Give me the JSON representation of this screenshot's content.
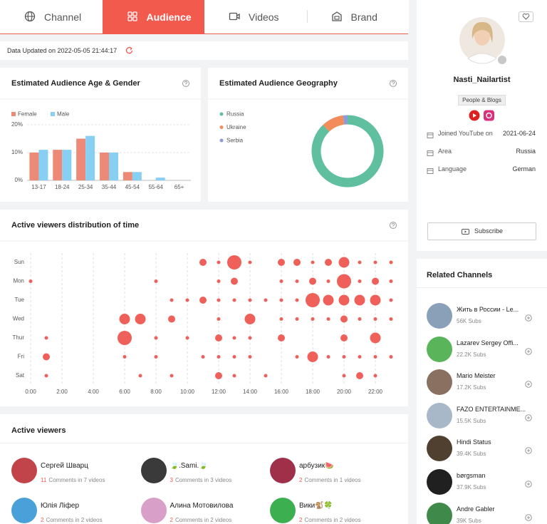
{
  "tabs": {
    "items": [
      "Channel",
      "Audience",
      "Videos",
      "Brand"
    ],
    "active": 1
  },
  "update": {
    "text": "Data Updated on 2022-05-05 21:44:17"
  },
  "chart_data": [
    {
      "type": "bar",
      "title": "Estimated Audience Age & Gender",
      "categories": [
        "13-17",
        "18-24",
        "25-34",
        "35-44",
        "45-54",
        "55-64",
        "65+"
      ],
      "series": [
        {
          "name": "Female",
          "color": "#ec8a77",
          "values": [
            10,
            11,
            15,
            10,
            3,
            0,
            0
          ]
        },
        {
          "name": "Male",
          "color": "#88d0f3",
          "values": [
            11,
            11,
            16,
            10,
            3,
            1,
            0
          ]
        }
      ],
      "ylim": [
        0,
        20
      ],
      "yticks": [
        {
          "value": 0,
          "label": "0%"
        },
        {
          "value": 10,
          "label": "10%"
        },
        {
          "value": 20,
          "label": "20%"
        }
      ],
      "grid": true
    },
    {
      "type": "donut",
      "title": "Estimated Audience Geography",
      "categories": [
        "Russia",
        "Ukraine",
        "Serbia"
      ],
      "values": [
        88,
        10,
        2
      ],
      "colors": [
        "#5fbf9f",
        "#f28c5b",
        "#8e9bd6"
      ]
    },
    {
      "type": "bubble",
      "title": "Active viewers distribution of time",
      "color": "#f0605a",
      "x": [
        0,
        1,
        2,
        3,
        4,
        5,
        6,
        7,
        8,
        9,
        10,
        11,
        12,
        13,
        14,
        15,
        16,
        17,
        18,
        19,
        20,
        21,
        22,
        23
      ],
      "xlim": [
        0,
        23
      ],
      "xticks": [
        {
          "value": 0,
          "label": "0:00"
        },
        {
          "value": 2,
          "label": "2:00"
        },
        {
          "value": 4,
          "label": "4:00"
        },
        {
          "value": 6,
          "label": "6:00"
        },
        {
          "value": 8,
          "label": "8:00"
        },
        {
          "value": 10,
          "label": "10:00"
        },
        {
          "value": 12,
          "label": "12:00"
        },
        {
          "value": 14,
          "label": "14:00"
        },
        {
          "value": 16,
          "label": "16:00"
        },
        {
          "value": 18,
          "label": "18:00"
        },
        {
          "value": 20,
          "label": "20:00"
        },
        {
          "value": 22,
          "label": "22:00"
        }
      ],
      "grid": true,
      "series": [
        {
          "name": "Sun",
          "values": [
            null,
            null,
            null,
            null,
            null,
            null,
            null,
            null,
            null,
            null,
            null,
            2,
            1,
            4,
            1,
            null,
            2,
            2,
            1,
            2,
            3,
            1,
            1,
            1
          ]
        },
        {
          "name": "Mon",
          "values": [
            1,
            null,
            null,
            null,
            null,
            null,
            null,
            null,
            1,
            null,
            null,
            null,
            1,
            2,
            null,
            null,
            1,
            1,
            2,
            1,
            4,
            1,
            2,
            1
          ]
        },
        {
          "name": "Tue",
          "values": [
            null,
            null,
            null,
            null,
            null,
            null,
            null,
            null,
            null,
            1,
            1,
            2,
            1,
            1,
            1,
            1,
            1,
            1,
            4,
            3,
            3,
            3,
            3,
            1
          ]
        },
        {
          "name": "Wed",
          "values": [
            null,
            null,
            null,
            null,
            null,
            null,
            3,
            3,
            null,
            2,
            null,
            null,
            1,
            null,
            3,
            null,
            1,
            1,
            1,
            1,
            2,
            1,
            1,
            1
          ]
        },
        {
          "name": "Thur",
          "values": [
            null,
            1,
            null,
            null,
            null,
            null,
            4,
            null,
            1,
            null,
            1,
            null,
            2,
            1,
            1,
            null,
            2,
            null,
            null,
            null,
            2,
            null,
            3,
            null
          ]
        },
        {
          "name": "Fri",
          "values": [
            null,
            2,
            null,
            null,
            null,
            null,
            1,
            null,
            1,
            null,
            null,
            1,
            1,
            1,
            1,
            null,
            null,
            1,
            3,
            1,
            1,
            1,
            1,
            1
          ]
        },
        {
          "name": "Sat",
          "values": [
            null,
            1,
            null,
            null,
            null,
            null,
            null,
            1,
            null,
            1,
            null,
            null,
            2,
            1,
            null,
            1,
            null,
            null,
            null,
            null,
            1,
            2,
            1,
            null
          ]
        }
      ]
    }
  ],
  "active_viewers": {
    "title": "Active viewers",
    "items": [
      {
        "name": "Сергей Шварц",
        "count": 11,
        "text": "Comments in 7 videos",
        "color": "#c0444a"
      },
      {
        "name": "🍃.Sami.🍃",
        "count": 3,
        "text": "Comments in 3 videos",
        "color": "#3a3a3a"
      },
      {
        "name": "арбузик🍉",
        "count": 2,
        "text": "Comments in 1 videos",
        "color": "#a0304a"
      },
      {
        "name": "Юлія Ліфер",
        "count": 2,
        "text": "Comments in 2 videos",
        "color": "#4aa0d8"
      },
      {
        "name": "Алина Мотовилова",
        "count": 2,
        "text": "Comments in 2 videos",
        "color": "#d8a0c8"
      },
      {
        "name": "Вики🐒🍀",
        "count": 2,
        "text": "Comments in 2 videos",
        "color": "#3cb050"
      }
    ]
  },
  "profile": {
    "name": "Nasti_Nailartist",
    "category": "People & Blogs",
    "info": [
      {
        "label": "Joined YouTube on",
        "value": "2021-06-24"
      },
      {
        "label": "Area",
        "value": "Russia"
      },
      {
        "label": "Language",
        "value": "German"
      }
    ],
    "button": "Subscribe"
  },
  "related_channels": {
    "title": "Related Channels",
    "items": [
      {
        "name": "Жить в России - Le...",
        "subs": "56K Subs",
        "color": "#8aa0b8"
      },
      {
        "name": "Lazarev Sergey Offi...",
        "subs": "22.2K Subs",
        "color": "#5ab45a"
      },
      {
        "name": "Mario Meister",
        "subs": "17.2K Subs",
        "color": "#8a7060"
      },
      {
        "name": "FAZO ENTERTAINME...",
        "subs": "15.5K Subs",
        "color": "#a8b8c8"
      },
      {
        "name": "Hindi Status",
        "subs": "39.4K Subs",
        "color": "#504030"
      },
      {
        "name": "børgsman",
        "subs": "37.9K Subs",
        "color": "#202020"
      },
      {
        "name": "Andre Gabler",
        "subs": "39K Subs",
        "color": "#3f8a4a"
      }
    ]
  }
}
